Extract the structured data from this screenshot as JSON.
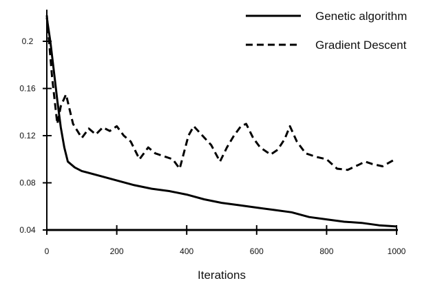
{
  "chart_data": {
    "type": "line",
    "title": "",
    "xlabel": "Iterations",
    "ylabel": "",
    "xlim": [
      0,
      1000
    ],
    "ylim": [
      0.04,
      0.225
    ],
    "x_ticks": [
      {
        "value": 0,
        "label": "0"
      },
      {
        "value": 200,
        "label": "200"
      },
      {
        "value": 400,
        "label": "400"
      },
      {
        "value": 600,
        "label": "600"
      },
      {
        "value": 800,
        "label": "800"
      },
      {
        "value": 1000,
        "label": "1000"
      }
    ],
    "y_ticks": [
      {
        "value": 0.04,
        "label": "0.04"
      },
      {
        "value": 0.08,
        "label": "0.08"
      },
      {
        "value": 0.12,
        "label": "0.12"
      },
      {
        "value": 0.16,
        "label": "0.16"
      },
      {
        "value": 0.2,
        "label": "0.2"
      }
    ],
    "grid": false,
    "legend_position": "top-right",
    "series": [
      {
        "name": "Genetic algorithm",
        "style": "solid",
        "color": "#000000",
        "points": [
          [
            0,
            0.22
          ],
          [
            10,
            0.2
          ],
          [
            20,
            0.175
          ],
          [
            30,
            0.15
          ],
          [
            40,
            0.127
          ],
          [
            50,
            0.11
          ],
          [
            60,
            0.098
          ],
          [
            80,
            0.093
          ],
          [
            100,
            0.09
          ],
          [
            150,
            0.086
          ],
          [
            200,
            0.082
          ],
          [
            250,
            0.078
          ],
          [
            300,
            0.075
          ],
          [
            350,
            0.073
          ],
          [
            400,
            0.07
          ],
          [
            450,
            0.066
          ],
          [
            500,
            0.063
          ],
          [
            550,
            0.061
          ],
          [
            600,
            0.059
          ],
          [
            650,
            0.057
          ],
          [
            700,
            0.055
          ],
          [
            750,
            0.051
          ],
          [
            800,
            0.049
          ],
          [
            850,
            0.047
          ],
          [
            900,
            0.046
          ],
          [
            950,
            0.044
          ],
          [
            1000,
            0.043
          ]
        ]
      },
      {
        "name": "Gradient Descent",
        "style": "dashed",
        "color": "#000000",
        "points": [
          [
            0,
            0.222
          ],
          [
            15,
            0.17
          ],
          [
            30,
            0.13
          ],
          [
            40,
            0.145
          ],
          [
            55,
            0.155
          ],
          [
            75,
            0.13
          ],
          [
            100,
            0.118
          ],
          [
            120,
            0.126
          ],
          [
            140,
            0.121
          ],
          [
            160,
            0.127
          ],
          [
            180,
            0.124
          ],
          [
            200,
            0.128
          ],
          [
            220,
            0.12
          ],
          [
            240,
            0.115
          ],
          [
            265,
            0.1
          ],
          [
            290,
            0.11
          ],
          [
            310,
            0.105
          ],
          [
            340,
            0.102
          ],
          [
            360,
            0.1
          ],
          [
            380,
            0.092
          ],
          [
            405,
            0.12
          ],
          [
            420,
            0.128
          ],
          [
            445,
            0.12
          ],
          [
            470,
            0.112
          ],
          [
            495,
            0.098
          ],
          [
            515,
            0.11
          ],
          [
            535,
            0.12
          ],
          [
            555,
            0.128
          ],
          [
            570,
            0.13
          ],
          [
            590,
            0.118
          ],
          [
            610,
            0.11
          ],
          [
            640,
            0.104
          ],
          [
            660,
            0.108
          ],
          [
            680,
            0.117
          ],
          [
            695,
            0.128
          ],
          [
            715,
            0.115
          ],
          [
            740,
            0.105
          ],
          [
            770,
            0.102
          ],
          [
            800,
            0.1
          ],
          [
            830,
            0.092
          ],
          [
            860,
            0.091
          ],
          [
            890,
            0.095
          ],
          [
            910,
            0.098
          ],
          [
            930,
            0.096
          ],
          [
            960,
            0.094
          ],
          [
            990,
            0.099
          ],
          [
            1000,
            0.099
          ]
        ]
      }
    ]
  }
}
